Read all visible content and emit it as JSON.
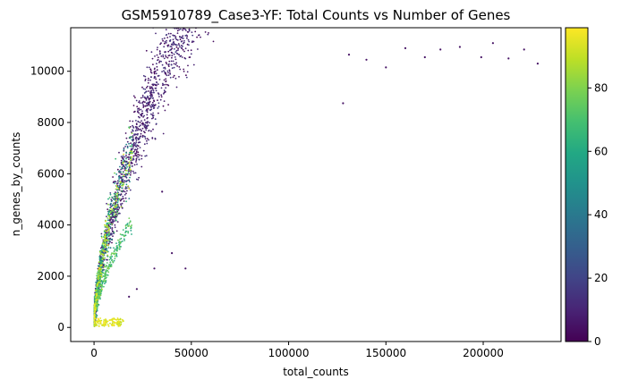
{
  "chart_data": {
    "type": "scatter",
    "title": "GSM5910789_Case3-YF: Total Counts vs Number of Genes",
    "xlabel": "total_counts",
    "ylabel": "n_genes_by_counts",
    "xlim": [
      -12000,
      240000
    ],
    "ylim": [
      -550,
      11700
    ],
    "x_ticks": [
      0,
      50000,
      100000,
      150000,
      200000
    ],
    "x_tick_labels": [
      "0",
      "50000",
      "100000",
      "150000",
      "200000"
    ],
    "y_ticks": [
      0,
      2000,
      4000,
      6000,
      8000,
      10000
    ],
    "y_tick_labels": [
      "0",
      "2000",
      "4000",
      "6000",
      "8000",
      "10000"
    ],
    "grid": false,
    "colormap": "viridis",
    "color_range": [
      0,
      99
    ],
    "colorbar_ticks": [
      0,
      20,
      40,
      60,
      80
    ],
    "colorbar_tick_labels": [
      "0",
      "20",
      "40",
      "60",
      "80"
    ],
    "points_high_tail": [
      {
        "x": 228000,
        "y": 10300
      },
      {
        "x": 221000,
        "y": 10850
      },
      {
        "x": 213000,
        "y": 10500
      },
      {
        "x": 205000,
        "y": 11100
      },
      {
        "x": 199000,
        "y": 10550
      },
      {
        "x": 188000,
        "y": 10950
      },
      {
        "x": 178000,
        "y": 10850
      },
      {
        "x": 170000,
        "y": 10550
      },
      {
        "x": 160000,
        "y": 10900
      },
      {
        "x": 150000,
        "y": 10150
      },
      {
        "x": 140000,
        "y": 10450
      },
      {
        "x": 131000,
        "y": 10650
      },
      {
        "x": 128000,
        "y": 8750
      }
    ],
    "points_outliers_low": [
      {
        "x": 47000,
        "y": 2300
      },
      {
        "x": 40000,
        "y": 2900
      },
      {
        "x": 31000,
        "y": 2300
      },
      {
        "x": 35000,
        "y": 5300
      },
      {
        "x": 22000,
        "y": 1500
      },
      {
        "x": 18000,
        "y": 1200
      },
      {
        "x": 15000,
        "y": 250
      },
      {
        "x": 12000,
        "y": 200
      },
      {
        "x": 9000,
        "y": 300
      }
    ]
  }
}
